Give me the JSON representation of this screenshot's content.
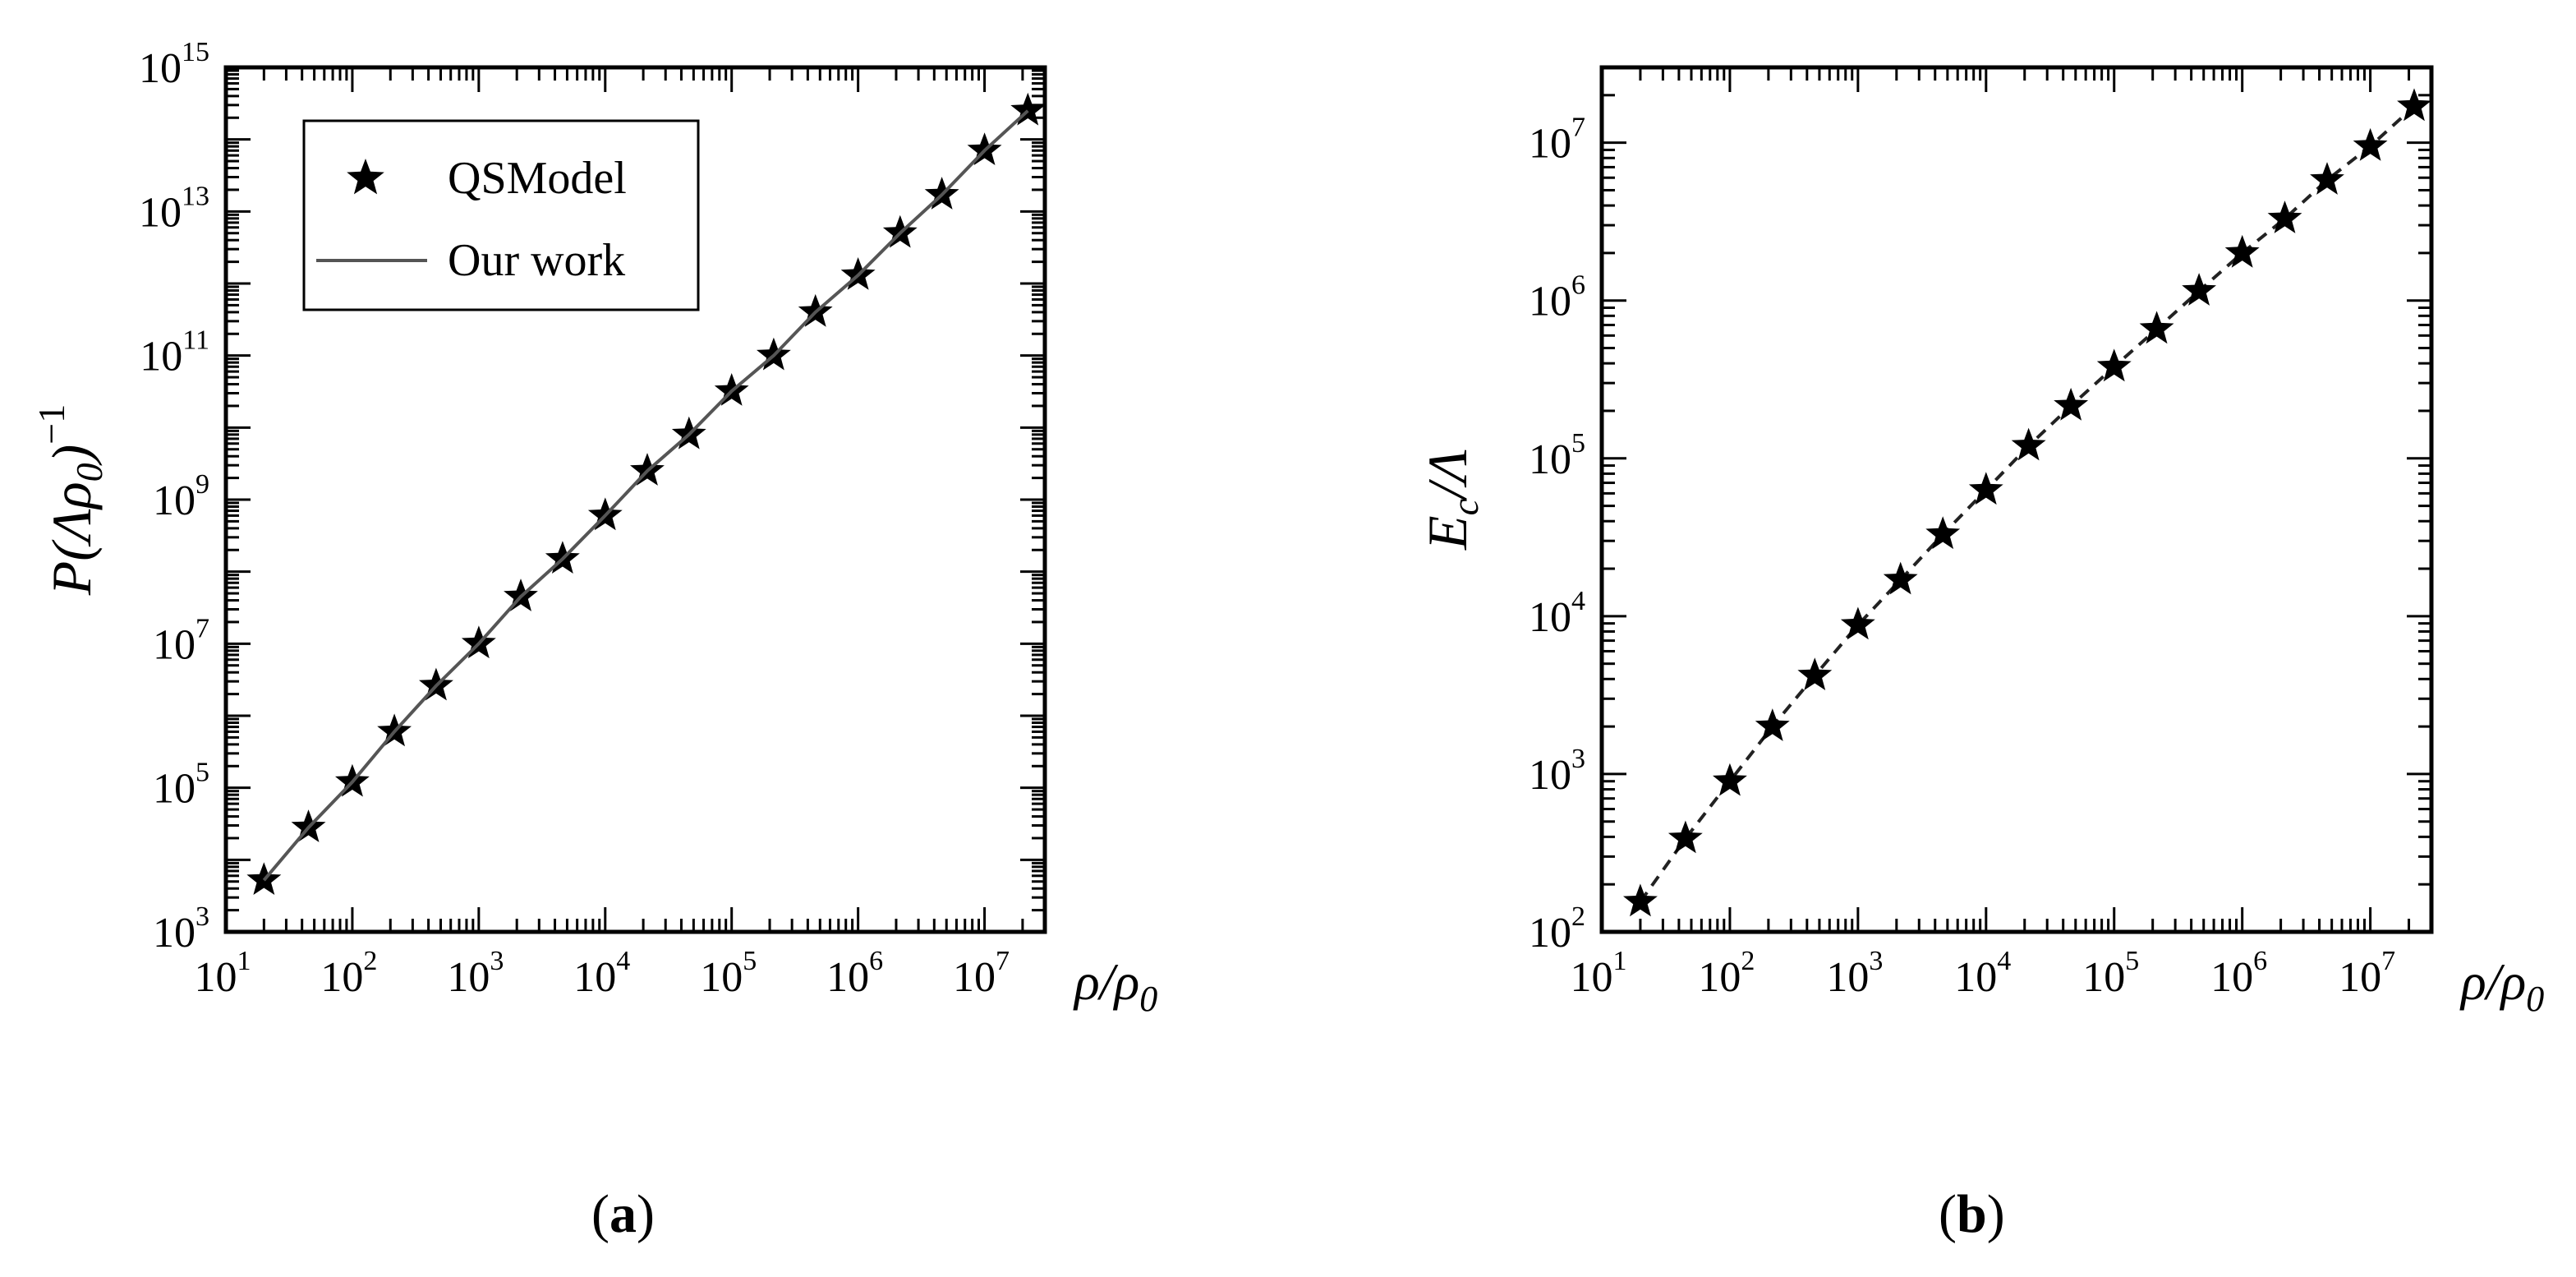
{
  "chart_data": [
    {
      "type": "line",
      "panel": "a",
      "x_scale": "log",
      "y_scale": "log",
      "xlim": [
        10,
        30000000
      ],
      "ylim": [
        1000,
        1000000000000000
      ],
      "xlabel_tex": "ρ/ρ0",
      "ylabel_tex": "P(Λρ0)^-1",
      "x_tick_labels": [
        {
          "base": "10",
          "exp": "1"
        },
        {
          "base": "10",
          "exp": "2"
        },
        {
          "base": "10",
          "exp": "3"
        },
        {
          "base": "10",
          "exp": "4"
        },
        {
          "base": "10",
          "exp": "5"
        },
        {
          "base": "10",
          "exp": "6"
        },
        {
          "base": "10",
          "exp": "7"
        }
      ],
      "y_tick_labels": [
        {
          "base": "10",
          "exp": "3"
        },
        {
          "base": "10",
          "exp": "5"
        },
        {
          "base": "10",
          "exp": "7"
        },
        {
          "base": "10",
          "exp": "9"
        },
        {
          "base": "10",
          "exp": "11"
        },
        {
          "base": "10",
          "exp": "13"
        },
        {
          "base": "10",
          "exp": "15"
        }
      ],
      "legend": {
        "placement": "top-left",
        "entries": [
          "QSModel",
          "Our work"
        ]
      },
      "series": [
        {
          "name": "QSModel",
          "marker": "star",
          "line": "none",
          "x": [
            20,
            45,
            100,
            215,
            460,
            1000,
            2150,
            4600,
            10000,
            21500,
            46000,
            100000,
            215000,
            460000,
            1000000,
            2150000,
            4600000,
            10000000,
            22000000
          ],
          "y": [
            5200,
            28000,
            120000,
            600000,
            2600000,
            10000000,
            45000000,
            150000000,
            600000000,
            2500000000,
            8000000000,
            32000000000,
            100000000000,
            400000000000,
            1300000000000,
            5000000000000,
            17000000000000,
            70000000000000,
            250000000000000
          ]
        },
        {
          "name": "Our work",
          "marker": "none",
          "line": "solid",
          "x": [
            20,
            45,
            100,
            215,
            460,
            1000,
            2150,
            4600,
            10000,
            21500,
            46000,
            100000,
            215000,
            460000,
            1000000,
            2150000,
            4600000,
            10000000,
            22000000
          ],
          "y": [
            5200,
            28000,
            120000,
            600000,
            2600000,
            10000000,
            45000000,
            150000000,
            600000000,
            2500000000,
            8000000000,
            32000000000,
            100000000000,
            400000000000,
            1300000000000,
            5000000000000,
            17000000000000,
            70000000000000,
            250000000000000
          ]
        }
      ]
    },
    {
      "type": "line",
      "panel": "b",
      "x_scale": "log",
      "y_scale": "log",
      "xlim": [
        10,
        30000000
      ],
      "ylim": [
        100,
        30000000
      ],
      "xlabel_tex": "ρ/ρ0",
      "ylabel_tex": "Ec/Λ",
      "x_tick_labels": [
        {
          "base": "10",
          "exp": "1"
        },
        {
          "base": "10",
          "exp": "2"
        },
        {
          "base": "10",
          "exp": "3"
        },
        {
          "base": "10",
          "exp": "4"
        },
        {
          "base": "10",
          "exp": "5"
        },
        {
          "base": "10",
          "exp": "6"
        },
        {
          "base": "10",
          "exp": "7"
        }
      ],
      "y_tick_labels": [
        {
          "base": "10",
          "exp": "2"
        },
        {
          "base": "10",
          "exp": "3"
        },
        {
          "base": "10",
          "exp": "4"
        },
        {
          "base": "10",
          "exp": "5"
        },
        {
          "base": "10",
          "exp": "6"
        },
        {
          "base": "10",
          "exp": "7"
        }
      ],
      "series": [
        {
          "marker": "star",
          "line": "dashed",
          "x": [
            20,
            45,
            100,
            215,
            460,
            1000,
            2150,
            4600,
            10000,
            21500,
            46000,
            100000,
            215000,
            460000,
            1000000,
            2150000,
            4600000,
            10000000,
            22000000
          ],
          "y": [
            155,
            390,
            900,
            2000,
            4200,
            8800,
            17000,
            33000,
            63000,
            120000,
            215000,
            380000,
            660000,
            1150000,
            2000000,
            3300000,
            5800000,
            9500000,
            17000000
          ]
        }
      ]
    }
  ],
  "captions": [
    "(a)",
    "(b)"
  ]
}
